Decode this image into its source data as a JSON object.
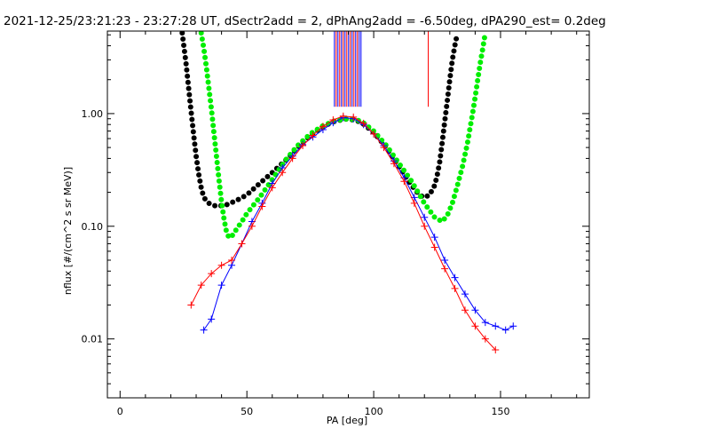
{
  "chart_data": {
    "type": "line",
    "title": "2021-12-25/23:21:23 - 23:27:28 UT, dSectr2add = 2, dPhAng2add = -6.50deg, dPA290_est=   0.2deg",
    "xlabel": "PA [deg]",
    "ylabel": "nflux [#/(cm^2 s sr MeV)]",
    "xlim": [
      -5,
      185
    ],
    "ylim": [
      0.003,
      5.4
    ],
    "yscale": "log",
    "grid": false,
    "x_ticks": [
      0,
      50,
      100,
      150
    ],
    "x_tick_labels": [
      "0",
      "50",
      "100",
      "150"
    ],
    "y_ticks": [
      0.01,
      0.1,
      1.0
    ],
    "y_tick_labels": [
      "0.01",
      "0.10",
      "1.00"
    ],
    "series": [
      {
        "color": "#000000",
        "style": "thick-dotted-curve",
        "x": [
          24.5,
          26,
          27,
          28,
          29,
          30,
          31,
          32,
          33,
          35,
          38,
          42,
          46,
          50,
          55,
          60,
          65,
          70,
          75,
          80,
          85,
          90,
          95,
          100,
          105,
          110,
          115,
          118,
          120,
          122,
          124,
          125,
          126,
          127,
          128,
          129,
          130,
          131,
          132,
          133
        ],
        "y": [
          5.2,
          2.8,
          1.7,
          1.05,
          0.65,
          0.42,
          0.29,
          0.22,
          0.18,
          0.16,
          0.15,
          0.155,
          0.17,
          0.19,
          0.24,
          0.3,
          0.38,
          0.5,
          0.64,
          0.77,
          0.86,
          0.9,
          0.84,
          0.68,
          0.5,
          0.34,
          0.23,
          0.19,
          0.18,
          0.19,
          0.23,
          0.28,
          0.37,
          0.55,
          0.85,
          1.3,
          2.0,
          3.0,
          4.0,
          5.2
        ]
      },
      {
        "color": "#00ee00",
        "style": "thick-dotted-curve",
        "x": [
          32,
          33,
          34,
          35,
          36,
          37,
          38,
          39,
          40,
          41,
          42,
          43,
          44,
          46,
          48,
          50,
          55,
          60,
          65,
          70,
          75,
          80,
          85,
          90,
          95,
          100,
          105,
          110,
          115,
          120,
          124,
          127,
          129,
          131,
          133,
          135,
          137,
          138,
          139,
          140,
          141,
          142,
          143,
          144
        ],
        "y": [
          5.2,
          3.8,
          2.6,
          1.7,
          1.1,
          0.68,
          0.42,
          0.26,
          0.165,
          0.115,
          0.088,
          0.079,
          0.081,
          0.095,
          0.11,
          0.13,
          0.18,
          0.26,
          0.38,
          0.52,
          0.66,
          0.78,
          0.87,
          0.9,
          0.86,
          0.7,
          0.52,
          0.36,
          0.25,
          0.16,
          0.12,
          0.11,
          0.125,
          0.16,
          0.23,
          0.34,
          0.55,
          0.75,
          1.0,
          1.4,
          2.0,
          2.8,
          3.8,
          5.2
        ]
      },
      {
        "color": "#0000ff",
        "style": "line-plus",
        "x": [
          33,
          36,
          40,
          44,
          48,
          52,
          56,
          60,
          64,
          68,
          72,
          76,
          80,
          84,
          88,
          92,
          96,
          100,
          104,
          108,
          112,
          116,
          120,
          124,
          128,
          132,
          136,
          140,
          144,
          148,
          152,
          155
        ],
        "y": [
          0.012,
          0.015,
          0.03,
          0.045,
          0.07,
          0.11,
          0.16,
          0.24,
          0.33,
          0.42,
          0.53,
          0.62,
          0.72,
          0.83,
          0.92,
          0.9,
          0.8,
          0.66,
          0.52,
          0.38,
          0.27,
          0.18,
          0.12,
          0.08,
          0.05,
          0.035,
          0.025,
          0.018,
          0.014,
          0.013,
          0.012,
          0.013
        ]
      },
      {
        "color": "#ff0000",
        "style": "line-plus",
        "x": [
          28,
          32,
          36,
          40,
          44,
          48,
          52,
          56,
          60,
          64,
          68,
          72,
          76,
          80,
          84,
          88,
          92,
          96,
          100,
          104,
          108,
          112,
          116,
          120,
          124,
          128,
          132,
          136,
          140,
          144,
          148
        ],
        "y": [
          0.02,
          0.03,
          0.038,
          0.045,
          0.05,
          0.07,
          0.1,
          0.15,
          0.22,
          0.3,
          0.4,
          0.52,
          0.64,
          0.77,
          0.88,
          0.95,
          0.93,
          0.82,
          0.66,
          0.5,
          0.36,
          0.25,
          0.16,
          0.1,
          0.065,
          0.042,
          0.028,
          0.018,
          0.013,
          0.01,
          0.008
        ]
      }
    ],
    "vertical_markers": [
      {
        "x": 84.5,
        "color": "#0000ff"
      },
      {
        "x": 85.2,
        "color": "#ff0000"
      },
      {
        "x": 85.9,
        "color": "#0000ff"
      },
      {
        "x": 86.6,
        "color": "#ff0000"
      },
      {
        "x": 87.3,
        "color": "#0000ff"
      },
      {
        "x": 88.0,
        "color": "#ff0000"
      },
      {
        "x": 88.7,
        "color": "#0000ff"
      },
      {
        "x": 89.4,
        "color": "#ff0000"
      },
      {
        "x": 90.1,
        "color": "#0000ff"
      },
      {
        "x": 90.8,
        "color": "#ff0000"
      },
      {
        "x": 91.5,
        "color": "#0000ff"
      },
      {
        "x": 92.2,
        "color": "#ff0000"
      },
      {
        "x": 92.9,
        "color": "#0000ff"
      },
      {
        "x": 93.6,
        "color": "#ff0000"
      },
      {
        "x": 94.3,
        "color": "#0000ff"
      },
      {
        "x": 95.0,
        "color": "#0000ff"
      },
      {
        "x": 121.5,
        "color": "#ff0000"
      }
    ]
  }
}
